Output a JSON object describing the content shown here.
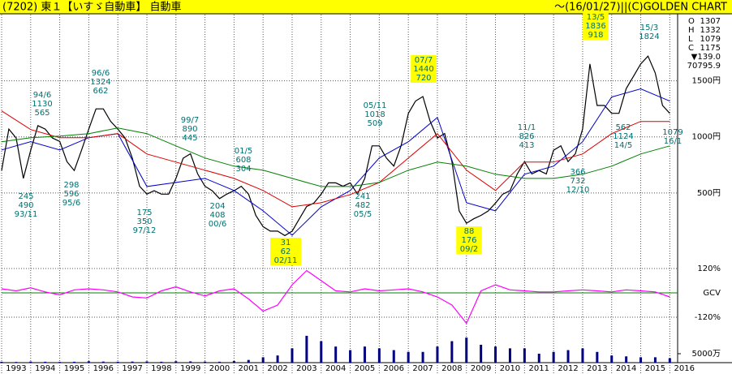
{
  "header": {
    "title": "(7202) 東１【いすゞ自動車】 自動車",
    "credit": "～(16/01/27)||(C)GOLDEN CHART"
  },
  "quote": [
    {
      "label": "O",
      "value": 1307
    },
    {
      "label": "H",
      "value": 1332
    },
    {
      "label": "L",
      "value": 1079
    },
    {
      "label": "C",
      "value": 1175
    }
  ],
  "change": "▼139.0",
  "volume_average": "70795.9",
  "chart_data": [
    {
      "type": "line",
      "xlim": [
        1993,
        2016.27
      ],
      "ylim": [
        -130,
        2090
      ],
      "xticks": [
        1993,
        1994,
        1995,
        1996,
        1997,
        1998,
        1999,
        2000,
        2001,
        2002,
        2003,
        2004,
        2005,
        2006,
        2007,
        2008,
        2009,
        2010,
        2011,
        2012,
        2013,
        2014,
        2015,
        2016
      ],
      "yticks": [
        {
          "value": 500,
          "label": "500円"
        },
        {
          "value": 1000,
          "label": "1000円"
        },
        {
          "value": 1500,
          "label": "1500円"
        }
      ],
      "grid": true,
      "series": [
        {
          "color": "#000000",
          "x": [
            1993,
            1993.25,
            1993.5,
            1993.75,
            1994,
            1994.25,
            1994.5,
            1994.75,
            1995,
            1995.25,
            1995.5,
            1995.75,
            1996,
            1996.25,
            1996.5,
            1996.75,
            1997,
            1997.25,
            1997.5,
            1997.75,
            1998,
            1998.25,
            1998.5,
            1998.75,
            1999,
            1999.25,
            1999.5,
            1999.75,
            2000,
            2000.25,
            2000.5,
            2000.75,
            2001,
            2001.25,
            2001.5,
            2001.75,
            2002,
            2002.25,
            2002.5,
            2002.75,
            2003,
            2003.25,
            2003.5,
            2003.75,
            2004,
            2004.25,
            2004.5,
            2004.75,
            2005,
            2005.25,
            2005.5,
            2005.75,
            2006,
            2006.25,
            2006.5,
            2006.75,
            2007,
            2007.25,
            2007.5,
            2007.75,
            2008,
            2008.25,
            2008.5,
            2008.75,
            2009,
            2009.25,
            2009.5,
            2009.75,
            2010,
            2010.25,
            2010.5,
            2010.75,
            2011,
            2011.25,
            2011.5,
            2011.75,
            2012,
            2012.25,
            2012.5,
            2012.75,
            2013,
            2013.25,
            2013.5,
            2013.75,
            2014,
            2014.25,
            2014.5,
            2014.75,
            2015,
            2015.25,
            2015.5,
            2015.75,
            2016
          ],
          "values": [
            700,
            1070,
            990,
            630,
            880,
            1100,
            1070,
            990,
            960,
            780,
            700,
            880,
            1070,
            1250,
            1250,
            1140,
            1070,
            990,
            810,
            560,
            490,
            520,
            490,
            490,
            630,
            810,
            850,
            670,
            560,
            520,
            450,
            490,
            520,
            560,
            490,
            300,
            200,
            160,
            160,
            120,
            160,
            270,
            380,
            410,
            490,
            590,
            590,
            560,
            590,
            490,
            630,
            920,
            920,
            810,
            740,
            920,
            1210,
            1320,
            1360,
            1140,
            990,
            1030,
            780,
            340,
            230,
            270,
            300,
            340,
            410,
            490,
            520,
            670,
            780,
            670,
            700,
            670,
            880,
            920,
            780,
            850,
            1070,
            1650,
            1280,
            1280,
            1210,
            1210,
            1430,
            1540,
            1650,
            1720,
            1570,
            1280,
            1210
          ]
        },
        {
          "color": "#0000cc",
          "x": [
            1993,
            1994,
            1995,
            1996,
            1997,
            1998,
            1999,
            2000,
            2001,
            2002,
            2003,
            2004,
            2005,
            2006,
            2007,
            2008,
            2009,
            2010,
            2011,
            2012,
            2013,
            2014,
            2015,
            2016
          ],
          "values": [
            884,
            957,
            884,
            993,
            1029,
            558,
            594,
            630,
            522,
            341,
            123,
            377,
            522,
            812,
            957,
            1174,
            413,
            341,
            667,
            739,
            957,
            1355,
            1428,
            1319
          ]
        },
        {
          "color": "#dd0000",
          "x": [
            1993,
            1994,
            1995,
            1996,
            1997,
            1998,
            1999,
            2000,
            2001,
            2002,
            2003,
            2004,
            2005,
            2006,
            2007,
            2008,
            2009,
            2010,
            2011,
            2012,
            2013,
            2014,
            2015,
            2016
          ],
          "values": [
            1232,
            1065,
            993,
            993,
            1029,
            848,
            775,
            703,
            630,
            522,
            377,
            413,
            486,
            594,
            812,
            1029,
            703,
            522,
            775,
            775,
            848,
            1029,
            1138,
            1138
          ]
        },
        {
          "color": "#008000",
          "x": [
            1993,
            1994,
            1995,
            1996,
            1997,
            1998,
            1999,
            2000,
            2001,
            2002,
            2003,
            2004,
            2005,
            2006,
            2007,
            2008,
            2009,
            2010,
            2011,
            2012,
            2013,
            2014,
            2015,
            2016
          ],
          "values": [
            957,
            993,
            1007,
            1029,
            1080,
            1029,
            920,
            812,
            739,
            703,
            630,
            558,
            558,
            594,
            703,
            775,
            739,
            667,
            630,
            630,
            667,
            739,
            848,
            920
          ]
        }
      ],
      "annotations": [
        {
          "lines": [
            "94/6",
            "1130",
            "565"
          ],
          "highlight": false
        },
        {
          "lines": [
            "245",
            "490",
            "93/11"
          ],
          "highlight": false
        },
        {
          "lines": [
            "96/6",
            "1324",
            "662"
          ],
          "highlight": false
        },
        {
          "lines": [
            "298",
            "596",
            "95/6"
          ],
          "highlight": false
        },
        {
          "lines": [
            "99/7",
            "890",
            "445"
          ],
          "highlight": false
        },
        {
          "lines": [
            "175",
            "350",
            "97/12"
          ],
          "highlight": false
        },
        {
          "lines": [
            "01/5",
            "608",
            "304"
          ],
          "highlight": false
        },
        {
          "lines": [
            "204",
            "408",
            "00/6"
          ],
          "highlight": false
        },
        {
          "lines": [
            "05/11",
            "1018",
            "509"
          ],
          "highlight": false
        },
        {
          "lines": [
            "07/7",
            "1440",
            "720"
          ],
          "highlight": true
        },
        {
          "lines": [
            "241",
            "482",
            "05/5"
          ],
          "highlight": false
        },
        {
          "lines": [
            "31",
            "62",
            "02/11"
          ],
          "highlight": true
        },
        {
          "lines": [
            "88",
            "176",
            "09/2"
          ],
          "highlight": true
        },
        {
          "lines": [
            "11/1",
            "826",
            "413"
          ],
          "highlight": false
        },
        {
          "lines": [
            "13/5",
            "1836",
            "918"
          ],
          "highlight": true
        },
        {
          "lines": [
            "15/3",
            "1824"
          ],
          "highlight": false
        },
        {
          "lines": [
            "562",
            "1124",
            "14/5"
          ],
          "highlight": false
        },
        {
          "lines": [
            "366",
            "732",
            "12/10"
          ],
          "highlight": false
        },
        {
          "lines": [
            "1079",
            "16/1"
          ],
          "highlight": false
        }
      ]
    },
    {
      "type": "line",
      "xlim": [
        1993,
        2016.27
      ],
      "ylim": [
        -180,
        156
      ],
      "yticks": [
        {
          "value": 120,
          "label": "120%"
        },
        {
          "value": 0,
          "label": "GCV"
        },
        {
          "value": -120,
          "label": "-120%"
        }
      ],
      "grid": true,
      "series": [
        {
          "color": "#ff00ff",
          "x": [
            1993,
            1993.5,
            1994,
            1994.5,
            1995,
            1995.5,
            1996,
            1996.5,
            1997,
            1997.5,
            1998,
            1998.5,
            1999,
            1999.5,
            2000,
            2000.5,
            2001,
            2001.5,
            2002,
            2002.5,
            2003,
            2003.5,
            2004,
            2004.5,
            2005,
            2005.5,
            2006,
            2006.5,
            2007,
            2007.5,
            2008,
            2008.5,
            2009,
            2009.5,
            2010,
            2010.5,
            2011,
            2011.5,
            2012,
            2012.5,
            2013,
            2013.5,
            2014,
            2014.5,
            2015,
            2015.5,
            2016
          ],
          "values": [
            20,
            10,
            25,
            5,
            -10,
            15,
            20,
            15,
            5,
            -20,
            -25,
            10,
            30,
            5,
            -15,
            10,
            20,
            -30,
            -90,
            -60,
            40,
            110,
            60,
            10,
            5,
            20,
            10,
            15,
            20,
            5,
            -20,
            -60,
            -150,
            10,
            40,
            15,
            10,
            5,
            5,
            10,
            15,
            10,
            5,
            15,
            10,
            5,
            -20
          ]
        }
      ]
    },
    {
      "type": "bar",
      "xlim": [
        1993,
        2016.27
      ],
      "ylim": [
        0,
        22000
      ],
      "yticks": [
        {
          "value": 5000,
          "label": "5000万"
        }
      ],
      "color": "#000080",
      "x": [
        1993,
        1993.5,
        1994,
        1994.5,
        1995,
        1995.5,
        1996,
        1996.5,
        1997,
        1997.5,
        1998,
        1998.5,
        1999,
        1999.5,
        2000,
        2000.5,
        2001,
        2001.5,
        2002,
        2002.5,
        2003,
        2003.5,
        2004,
        2004.5,
        2005,
        2005.5,
        2006,
        2006.5,
        2007,
        2007.5,
        2008,
        2008.5,
        2009,
        2009.5,
        2010,
        2010.5,
        2011,
        2011.5,
        2012,
        2012.5,
        2013,
        2013.5,
        2014,
        2014.5,
        2015,
        2015.5,
        2016
      ],
      "values": [
        500,
        400,
        600,
        500,
        400,
        500,
        800,
        600,
        500,
        600,
        700,
        500,
        800,
        700,
        600,
        500,
        900,
        1500,
        3000,
        4000,
        8000,
        15000,
        12000,
        9000,
        7000,
        9000,
        8000,
        7000,
        6000,
        6000,
        9000,
        12000,
        14000,
        10000,
        9000,
        8000,
        8000,
        5000,
        6000,
        7000,
        8000,
        6000,
        4000,
        3500,
        3000,
        3000,
        2500
      ]
    }
  ]
}
